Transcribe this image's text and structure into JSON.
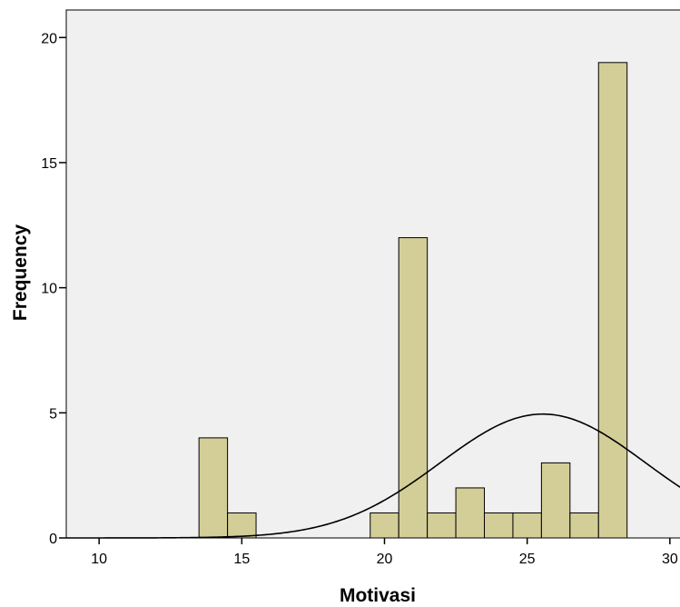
{
  "chart_data": {
    "type": "bar",
    "subtype": "histogram",
    "xlabel": "Motivasi",
    "ylabel": "Frequency",
    "xlim": [
      8.85,
      30.8
    ],
    "ylim": [
      0,
      21.1
    ],
    "xticks": [
      10,
      15,
      20,
      25,
      30
    ],
    "yticks": [
      0,
      5,
      10,
      15,
      20
    ],
    "bin_width": 1,
    "bins": [
      {
        "center": 14,
        "value": 4
      },
      {
        "center": 15,
        "value": 1
      },
      {
        "center": 20,
        "value": 1
      },
      {
        "center": 21,
        "value": 12
      },
      {
        "center": 22,
        "value": 1
      },
      {
        "center": 23,
        "value": 2
      },
      {
        "center": 24,
        "value": 1
      },
      {
        "center": 25,
        "value": 1
      },
      {
        "center": 26,
        "value": 3
      },
      {
        "center": 27,
        "value": 1
      },
      {
        "center": 28,
        "value": 19
      }
    ],
    "normal_curve": {
      "mean": 25.55,
      "std_dev": 3.6,
      "peak": 4.95
    },
    "grid": false,
    "colors": {
      "plot_background": "#f0f0f0",
      "bar_fill": "#d3ce97",
      "bar_stroke": "#000000",
      "curve": "#000000"
    }
  }
}
